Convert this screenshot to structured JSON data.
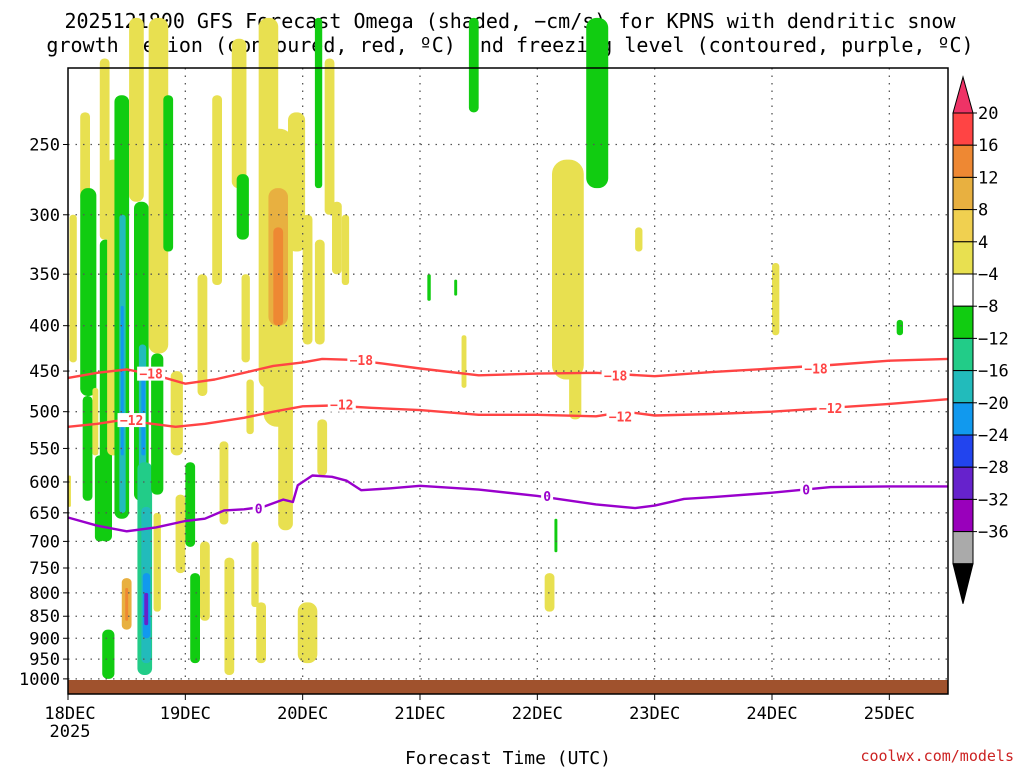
{
  "chart_data": {
    "type": "heatmap",
    "title_line1": "2025121800 GFS Forecast Omega (shaded, −cm/s) for KPNS with dendritic snow",
    "title_line2": "growth region (contoured, red, ºC) and freezing level (contoured, purple, ºC)",
    "xlabel": "Forecast Time (UTC)",
    "ylabel": "",
    "credit": "coolwx.com/models",
    "x_unit": "hours since 2025-12-18 00Z",
    "xlim": [
      0,
      180
    ],
    "ylim_hpa": [
      1040,
      205
    ],
    "x_ticks": [
      {
        "x": 0,
        "label": "18DEC"
      },
      {
        "x": 24,
        "label": "19DEC"
      },
      {
        "x": 48,
        "label": "20DEC"
      },
      {
        "x": 72,
        "label": "21DEC"
      },
      {
        "x": 96,
        "label": "22DEC"
      },
      {
        "x": 120,
        "label": "23DEC"
      },
      {
        "x": 144,
        "label": "24DEC"
      },
      {
        "x": 168,
        "label": "25DEC"
      }
    ],
    "x_tick_sublabel": "2025",
    "y_ticks": [
      {
        "p": 250,
        "label": "250"
      },
      {
        "p": 300,
        "label": "300"
      },
      {
        "p": 350,
        "label": "350"
      },
      {
        "p": 400,
        "label": "400"
      },
      {
        "p": 450,
        "label": "450"
      },
      {
        "p": 500,
        "label": "500"
      },
      {
        "p": 550,
        "label": "550"
      },
      {
        "p": 600,
        "label": "600"
      },
      {
        "p": 650,
        "label": "650"
      },
      {
        "p": 700,
        "label": "700"
      },
      {
        "p": 750,
        "label": "750"
      },
      {
        "p": 800,
        "label": "800"
      },
      {
        "p": 850,
        "label": "850"
      },
      {
        "p": 900,
        "label": "900"
      },
      {
        "p": 950,
        "label": "950"
      },
      {
        "p": 1000,
        "label": "1000"
      }
    ],
    "colorbar": {
      "labels": [
        "20",
        "16",
        "12",
        "8",
        "4",
        "−4",
        "−8",
        "−12",
        "−16",
        "−20",
        "−24",
        "−28",
        "−32",
        "−36"
      ],
      "colors": [
        "#ee3366",
        "#ff4444",
        "#ee8833",
        "#e8b040",
        "#f0d050",
        "#e8e050",
        "#ffffff",
        "#11cc11",
        "#22cc88",
        "#22bbbb",
        "#1199ee",
        "#2244ee",
        "#6622cc",
        "#9900bb",
        "#aaaaaa",
        "#000000"
      ]
    },
    "contours": [
      {
        "name": "dgz-minus-18",
        "label": "−18",
        "color": "#ff4444",
        "points": [
          [
            0,
            458
          ],
          [
            6,
            452
          ],
          [
            12,
            448
          ],
          [
            18,
            455
          ],
          [
            24,
            465
          ],
          [
            30,
            460
          ],
          [
            36,
            452
          ],
          [
            42,
            444
          ],
          [
            48,
            440
          ],
          [
            52,
            436
          ],
          [
            58,
            437
          ],
          [
            64,
            441
          ],
          [
            72,
            447
          ],
          [
            84,
            455
          ],
          [
            96,
            453
          ],
          [
            108,
            452
          ],
          [
            120,
            456
          ],
          [
            132,
            451
          ],
          [
            144,
            447
          ],
          [
            156,
            443
          ],
          [
            168,
            438
          ],
          [
            180,
            436
          ]
        ],
        "label_at": [
          [
            17,
            453
          ],
          [
            60,
            437
          ],
          [
            112,
            455
          ],
          [
            153,
            447
          ]
        ]
      },
      {
        "name": "dgz-minus-12",
        "label": "−12",
        "color": "#ff4444",
        "points": [
          [
            0,
            520
          ],
          [
            6,
            516
          ],
          [
            10,
            512
          ],
          [
            16,
            515
          ],
          [
            22,
            520
          ],
          [
            28,
            516
          ],
          [
            36,
            508
          ],
          [
            42,
            500
          ],
          [
            48,
            493
          ],
          [
            54,
            492
          ],
          [
            62,
            495
          ],
          [
            72,
            498
          ],
          [
            84,
            504
          ],
          [
            96,
            504
          ],
          [
            108,
            506
          ],
          [
            114,
            500
          ],
          [
            120,
            505
          ],
          [
            132,
            503
          ],
          [
            144,
            500
          ],
          [
            156,
            495
          ],
          [
            168,
            490
          ],
          [
            180,
            484
          ]
        ],
        "label_at": [
          [
            13,
            511
          ],
          [
            56,
            491
          ],
          [
            113,
            506
          ],
          [
            156,
            495
          ]
        ]
      },
      {
        "name": "freezing-level-0",
        "label": "0",
        "color": "#9900cc",
        "points": [
          [
            0,
            658
          ],
          [
            6,
            672
          ],
          [
            12,
            682
          ],
          [
            18,
            675
          ],
          [
            24,
            664
          ],
          [
            28,
            660
          ],
          [
            32,
            646
          ],
          [
            36,
            644
          ],
          [
            40,
            640
          ],
          [
            44,
            628
          ],
          [
            46,
            632
          ],
          [
            47,
            605
          ],
          [
            50,
            590
          ],
          [
            54,
            592
          ],
          [
            57,
            598
          ],
          [
            60,
            613
          ],
          [
            66,
            610
          ],
          [
            72,
            606
          ],
          [
            84,
            612
          ],
          [
            96,
            622
          ],
          [
            108,
            636
          ],
          [
            116,
            642
          ],
          [
            120,
            638
          ],
          [
            126,
            627
          ],
          [
            132,
            624
          ],
          [
            144,
            617
          ],
          [
            156,
            608
          ],
          [
            168,
            607
          ],
          [
            180,
            607
          ]
        ],
        "label_at": [
          [
            39,
            643
          ],
          [
            98,
            622
          ],
          [
            151,
            612
          ]
        ]
      }
    ],
    "omega_regions": [
      {
        "x0": 0,
        "x1": 0.6,
        "p0": 590,
        "p1": 640,
        "value": 6
      },
      {
        "x0": 0.3,
        "x1": 1.8,
        "p0": 300,
        "p1": 440,
        "value": 6
      },
      {
        "x0": 2.5,
        "x1": 4.5,
        "p0": 230,
        "p1": 290,
        "value": 6
      },
      {
        "x0": 2.5,
        "x1": 5.8,
        "p0": 280,
        "p1": 480,
        "value": -6
      },
      {
        "x0": 3,
        "x1": 5,
        "p0": 480,
        "p1": 630,
        "value": -6
      },
      {
        "x0": 5,
        "x1": 6.2,
        "p0": 470,
        "p1": 560,
        "value": 6
      },
      {
        "x0": 5.5,
        "x1": 7.5,
        "p0": 560,
        "p1": 700,
        "value": -6
      },
      {
        "x0": 6.5,
        "x1": 8.5,
        "p0": 200,
        "p1": 320,
        "value": 6
      },
      {
        "x0": 6.5,
        "x1": 9,
        "p0": 320,
        "p1": 700,
        "value": -6
      },
      {
        "x0": 7,
        "x1": 9.5,
        "p0": 880,
        "p1": 1000,
        "value": -6
      },
      {
        "x0": 8,
        "x1": 10.5,
        "p0": 260,
        "p1": 560,
        "value": 6
      },
      {
        "x0": 9.5,
        "x1": 12.5,
        "p0": 220,
        "p1": 660,
        "value": -7
      },
      {
        "x0": 10.5,
        "x1": 11.8,
        "p0": 300,
        "p1": 650,
        "value": -12
      },
      {
        "x0": 10.8,
        "x1": 11.4,
        "p0": 380,
        "p1": 560,
        "value": -18
      },
      {
        "x0": 11,
        "x1": 13,
        "p0": 770,
        "p1": 880,
        "value": 8
      },
      {
        "x0": 11.7,
        "x1": 12.3,
        "p0": 790,
        "p1": 860,
        "value": 13
      },
      {
        "x0": 12.5,
        "x1": 15.5,
        "p0": 180,
        "p1": 290,
        "value": 6
      },
      {
        "x0": 13.5,
        "x1": 16.5,
        "p0": 290,
        "p1": 630,
        "value": -6
      },
      {
        "x0": 14.5,
        "x1": 16,
        "p0": 420,
        "p1": 600,
        "value": -13
      },
      {
        "x0": 15,
        "x1": 15.8,
        "p0": 460,
        "p1": 560,
        "value": -18
      },
      {
        "x0": 14.2,
        "x1": 17.2,
        "p0": 570,
        "p1": 990,
        "value": -9
      },
      {
        "x0": 15,
        "x1": 17,
        "p0": 640,
        "p1": 960,
        "value": -13
      },
      {
        "x0": 15.3,
        "x1": 16.8,
        "p0": 760,
        "p1": 900,
        "value": -19
      },
      {
        "x0": 15.6,
        "x1": 16.4,
        "p0": 800,
        "p1": 870,
        "value": -24
      },
      {
        "x0": 16.5,
        "x1": 20.5,
        "p0": 180,
        "p1": 430,
        "value": 6
      },
      {
        "x0": 17,
        "x1": 19.5,
        "p0": 430,
        "p1": 620,
        "value": -6
      },
      {
        "x0": 17.5,
        "x1": 19,
        "p0": 650,
        "p1": 840,
        "value": 6
      },
      {
        "x0": 19.5,
        "x1": 21.5,
        "p0": 220,
        "p1": 330,
        "value": -6
      },
      {
        "x0": 21,
        "x1": 23.5,
        "p0": 450,
        "p1": 560,
        "value": 6
      },
      {
        "x0": 22,
        "x1": 24,
        "p0": 620,
        "p1": 760,
        "value": 6
      },
      {
        "x0": 24,
        "x1": 26,
        "p0": 570,
        "p1": 710,
        "value": -6
      },
      {
        "x0": 25,
        "x1": 27,
        "p0": 760,
        "p1": 960,
        "value": -6
      },
      {
        "x0": 26.5,
        "x1": 28.5,
        "p0": 350,
        "p1": 480,
        "value": 6
      },
      {
        "x0": 27,
        "x1": 29,
        "p0": 700,
        "p1": 860,
        "value": 6
      },
      {
        "x0": 29.5,
        "x1": 31.5,
        "p0": 220,
        "p1": 360,
        "value": 6
      },
      {
        "x0": 31,
        "x1": 32.8,
        "p0": 540,
        "p1": 670,
        "value": 6
      },
      {
        "x0": 32,
        "x1": 34,
        "p0": 730,
        "p1": 990,
        "value": 6
      },
      {
        "x0": 33.5,
        "x1": 36.5,
        "p0": 190,
        "p1": 280,
        "value": 6
      },
      {
        "x0": 34.5,
        "x1": 37,
        "p0": 270,
        "p1": 320,
        "value": -6
      },
      {
        "x0": 35.5,
        "x1": 37.2,
        "p0": 350,
        "p1": 440,
        "value": 6
      },
      {
        "x0": 36.5,
        "x1": 38,
        "p0": 460,
        "p1": 530,
        "value": 6
      },
      {
        "x0": 37.5,
        "x1": 39,
        "p0": 700,
        "p1": 830,
        "value": 6
      },
      {
        "x0": 38.5,
        "x1": 40.5,
        "p0": 820,
        "p1": 960,
        "value": 6
      },
      {
        "x0": 39,
        "x1": 43,
        "p0": 180,
        "p1": 470,
        "value": 6
      },
      {
        "x0": 40,
        "x1": 46,
        "p0": 240,
        "p1": 520,
        "value": 7
      },
      {
        "x0": 41,
        "x1": 45,
        "p0": 280,
        "p1": 400,
        "value": 10
      },
      {
        "x0": 42,
        "x1": 44,
        "p0": 310,
        "p1": 400,
        "value": 14
      },
      {
        "x0": 43,
        "x1": 46,
        "p0": 480,
        "p1": 680,
        "value": 6
      },
      {
        "x0": 45,
        "x1": 48.5,
        "p0": 230,
        "p1": 330,
        "value": 6
      },
      {
        "x0": 47,
        "x1": 51,
        "p0": 820,
        "p1": 960,
        "value": 6
      },
      {
        "x0": 48,
        "x1": 50,
        "p0": 300,
        "p1": 420,
        "value": 6
      },
      {
        "x0": 50.5,
        "x1": 52,
        "p0": 180,
        "p1": 280,
        "value": -6
      },
      {
        "x0": 50.5,
        "x1": 52.5,
        "p0": 320,
        "p1": 420,
        "value": 6
      },
      {
        "x0": 51,
        "x1": 53,
        "p0": 510,
        "p1": 590,
        "value": 6
      },
      {
        "x0": 52.5,
        "x1": 54.5,
        "p0": 200,
        "p1": 300,
        "value": 6
      },
      {
        "x0": 54,
        "x1": 56,
        "p0": 290,
        "p1": 350,
        "value": 6
      },
      {
        "x0": 56,
        "x1": 57.5,
        "p0": 300,
        "p1": 360,
        "value": 6
      },
      {
        "x0": 73.5,
        "x1": 74.2,
        "p0": 350,
        "p1": 375,
        "value": -6
      },
      {
        "x0": 79,
        "x1": 79.6,
        "p0": 355,
        "p1": 370,
        "value": -6
      },
      {
        "x0": 80.5,
        "x1": 81.5,
        "p0": 410,
        "p1": 470,
        "value": 6
      },
      {
        "x0": 82,
        "x1": 84,
        "p0": 180,
        "p1": 230,
        "value": -6
      },
      {
        "x0": 99,
        "x1": 105.5,
        "p0": 260,
        "p1": 460,
        "value": 6
      },
      {
        "x0": 101,
        "x1": 104.5,
        "p0": 330,
        "p1": 430,
        "value": 7
      },
      {
        "x0": 102.5,
        "x1": 105,
        "p0": 430,
        "p1": 510,
        "value": 6
      },
      {
        "x0": 106,
        "x1": 110.5,
        "p0": 180,
        "p1": 280,
        "value": -6
      },
      {
        "x0": 97.5,
        "x1": 99.5,
        "p0": 760,
        "p1": 840,
        "value": 6
      },
      {
        "x0": 99.5,
        "x1": 100.1,
        "p0": 660,
        "p1": 720,
        "value": -6
      },
      {
        "x0": 116,
        "x1": 117.5,
        "p0": 310,
        "p1": 330,
        "value": 6
      },
      {
        "x0": 144,
        "x1": 145.5,
        "p0": 340,
        "p1": 410,
        "value": 6
      },
      {
        "x0": 169.5,
        "x1": 170.8,
        "p0": 394,
        "p1": 410,
        "value": -6
      }
    ]
  }
}
